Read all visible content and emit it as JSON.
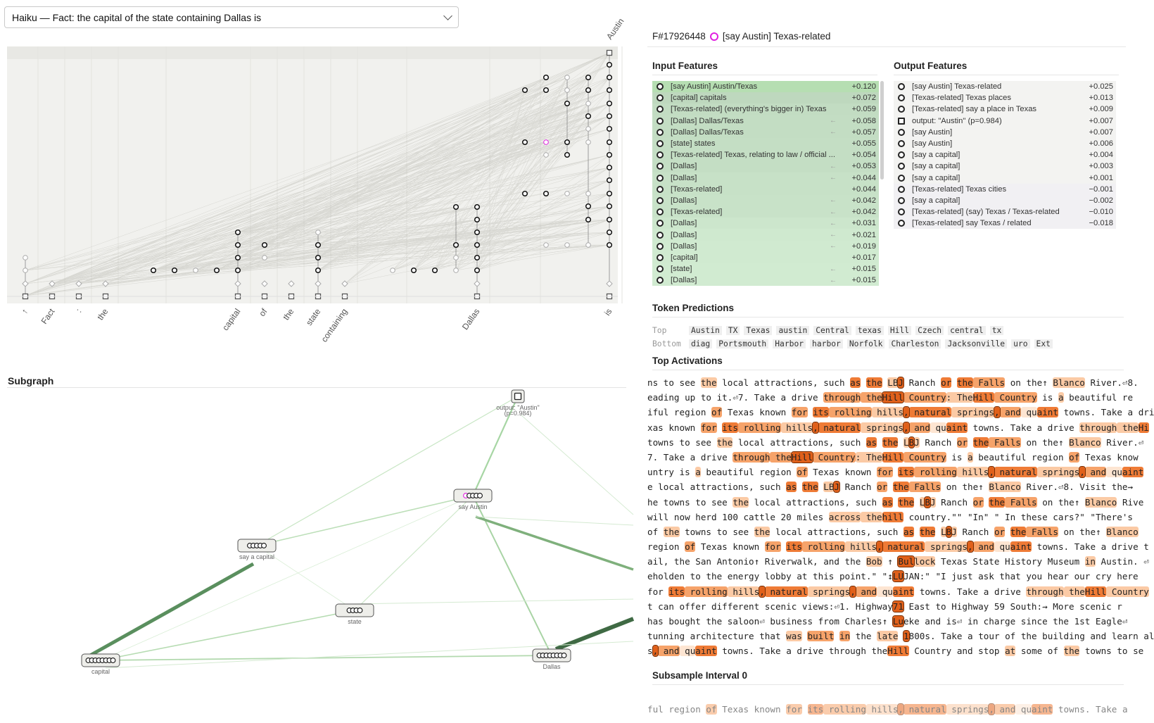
{
  "prompt_select": {
    "value": "Haiku — Fact: the capital of the state containing Dallas is"
  },
  "graph": {
    "tokens": [
      "↑",
      "Fact",
      ":",
      "the",
      "capital",
      "of",
      "the",
      "state",
      "containing",
      "Dallas",
      "is"
    ],
    "top_token": "Austin"
  },
  "subgraph": {
    "title": "Subgraph",
    "nodes": {
      "output": "output: \"Austin\"",
      "output_p": "(p=0.984)",
      "say_austin": "say Austin",
      "say_capital": "say a capital",
      "state": "state",
      "capital": "capital",
      "dallas": "Dallas"
    }
  },
  "feature": {
    "id": "F#17926448",
    "name": "[say Austin] Texas-related",
    "ring_color": "#e020e0"
  },
  "input_features": {
    "title": "Input Features",
    "items": [
      {
        "label": "[say Austin] Austin/Texas",
        "arrow": "",
        "value": "+0.120",
        "w": 1.0
      },
      {
        "label": "[capital] capitals",
        "arrow": "",
        "value": "+0.072",
        "w": 0.6
      },
      {
        "label": "[Texas-related] (everything's bigger in) Texas",
        "arrow": "",
        "value": "+0.059",
        "w": 0.49
      },
      {
        "label": "[Dallas] Dallas/Texas",
        "arrow": "←",
        "value": "+0.058",
        "w": 0.48
      },
      {
        "label": "[Dallas] Dallas/Texas",
        "arrow": "←",
        "value": "+0.057",
        "w": 0.47
      },
      {
        "label": "[state] states",
        "arrow": "",
        "value": "+0.055",
        "w": 0.46
      },
      {
        "label": "[Texas-related] Texas, relating to law / official ...",
        "arrow": "",
        "value": "+0.054",
        "w": 0.45
      },
      {
        "label": "[Dallas]",
        "arrow": "←",
        "value": "+0.053",
        "w": 0.44
      },
      {
        "label": "[Dallas]",
        "arrow": "←",
        "value": "+0.044",
        "w": 0.37
      },
      {
        "label": "[Texas-related]",
        "arrow": "",
        "value": "+0.044",
        "w": 0.37
      },
      {
        "label": "[Dallas]",
        "arrow": "←",
        "value": "+0.042",
        "w": 0.35
      },
      {
        "label": "[Texas-related]",
        "arrow": "←",
        "value": "+0.042",
        "w": 0.35
      },
      {
        "label": "[Dallas]",
        "arrow": "←",
        "value": "+0.031",
        "w": 0.26
      },
      {
        "label": "[Dallas]",
        "arrow": "←",
        "value": "+0.021",
        "w": 0.18
      },
      {
        "label": "[Dallas]",
        "arrow": "←",
        "value": "+0.019",
        "w": 0.16
      },
      {
        "label": "[capital]",
        "arrow": "",
        "value": "+0.017",
        "w": 0.14
      },
      {
        "label": "[state]",
        "arrow": "←",
        "value": "+0.015",
        "w": 0.13
      },
      {
        "label": "[Dallas]",
        "arrow": "←",
        "value": "+0.015",
        "w": 0.13
      }
    ]
  },
  "output_features": {
    "title": "Output Features",
    "items": [
      {
        "label": "[say Austin] Texas-related",
        "value": "+0.025",
        "sq": false
      },
      {
        "label": "[Texas-related] Texas places",
        "value": "+0.013",
        "sq": false
      },
      {
        "label": "[Texas-related] say a place in Texas",
        "value": "+0.009",
        "sq": false
      },
      {
        "label": "output: \"Austin\" (p=0.984)",
        "value": "+0.007",
        "sq": true
      },
      {
        "label": "[say Austin]",
        "value": "+0.007",
        "sq": false
      },
      {
        "label": "[say Austin]",
        "value": "+0.006",
        "sq": false
      },
      {
        "label": "[say a capital]",
        "value": "+0.004",
        "sq": false
      },
      {
        "label": "[say a capital]",
        "value": "+0.003",
        "sq": false
      },
      {
        "label": "[say a capital]",
        "value": "+0.001",
        "sq": false
      },
      {
        "label": "[Texas-related] Texas cities",
        "value": "−0.001",
        "sq": false
      },
      {
        "label": "[say a capital]",
        "value": "−0.002",
        "sq": false
      },
      {
        "label": "[Texas-related] (say) Texas / Texas-related",
        "value": "−0.010",
        "sq": false
      },
      {
        "label": "[Texas-related] say Texas / related",
        "value": "−0.018",
        "sq": false
      }
    ]
  },
  "token_predictions": {
    "title": "Token Predictions",
    "top_label": "Top",
    "bottom_label": "Bottom",
    "top": [
      "Austin",
      "TX",
      "Texas",
      "austin",
      "Central",
      "texas",
      "Hill",
      "Czech",
      "central",
      "tx"
    ],
    "bottom": [
      "diag",
      "Portsmouth",
      "Harbor",
      "harbor",
      "Norfolk",
      "Charleston",
      "Jacksonville",
      "uro",
      "Ext"
    ]
  },
  "top_activations": {
    "title": "Top Activations",
    "lines": [
      [
        [
          "ns to see ",
          0
        ],
        [
          "the",
          2
        ],
        [
          " local attractions, such ",
          0
        ],
        [
          "as",
          4
        ],
        [
          " ",
          0
        ],
        [
          "the",
          4
        ],
        [
          " ",
          0
        ],
        [
          "LB",
          2
        ],
        [
          "J",
          5
        ],
        [
          " Ranch ",
          0
        ],
        [
          "or",
          4
        ],
        [
          " ",
          0
        ],
        [
          "the",
          4
        ],
        [
          " Falls",
          3
        ],
        [
          " on the↑ ",
          0
        ],
        [
          "Blanco",
          2
        ],
        [
          " River.⏎8.",
          0
        ]
      ],
      [
        [
          "eading up to it.⏎7. Take a drive ",
          0
        ],
        [
          "through",
          3
        ],
        [
          " the",
          3
        ],
        [
          "Hill",
          5
        ],
        [
          " Country",
          3
        ],
        [
          ": The",
          2
        ],
        [
          "Hill",
          4
        ],
        [
          " Country",
          3
        ],
        [
          " is ",
          0
        ],
        [
          "a",
          2
        ],
        [
          " beautiful re",
          0
        ]
      ],
      [
        [
          "iful region ",
          0
        ],
        [
          "of",
          3
        ],
        [
          " Texas known ",
          0
        ],
        [
          "for",
          3
        ],
        [
          " ",
          0
        ],
        [
          "its",
          4
        ],
        [
          " rolling",
          3
        ],
        [
          " hills",
          2
        ],
        [
          ",",
          5
        ],
        [
          " natural",
          4
        ],
        [
          " springs",
          2
        ],
        [
          ",",
          5
        ],
        [
          " and",
          3
        ],
        [
          " qu",
          1
        ],
        [
          "aint",
          4
        ],
        [
          " towns. Take a dri",
          0
        ]
      ],
      [
        [
          "xas known ",
          0
        ],
        [
          "for",
          3
        ],
        [
          " ",
          0
        ],
        [
          "its",
          4
        ],
        [
          " rolling",
          3
        ],
        [
          " hills",
          2
        ],
        [
          ",",
          5
        ],
        [
          " natural",
          4
        ],
        [
          " springs",
          2
        ],
        [
          ",",
          5
        ],
        [
          " and",
          3
        ],
        [
          " qu",
          1
        ],
        [
          "aint",
          4
        ],
        [
          " towns. Take a drive ",
          0
        ],
        [
          "through",
          2
        ],
        [
          " the",
          2
        ],
        [
          "Hi",
          4
        ]
      ],
      [
        [
          "towns to see ",
          0
        ],
        [
          "the",
          2
        ],
        [
          " local attractions, such ",
          0
        ],
        [
          "as",
          4
        ],
        [
          " ",
          0
        ],
        [
          "the",
          4
        ],
        [
          " ",
          0
        ],
        [
          "L",
          2
        ],
        [
          "B",
          5
        ],
        [
          "J",
          2
        ],
        [
          " Ranch ",
          0
        ],
        [
          "or",
          3
        ],
        [
          " ",
          0
        ],
        [
          "the",
          4
        ],
        [
          " Falls",
          3
        ],
        [
          " on the↑ ",
          0
        ],
        [
          "Blanco",
          2
        ],
        [
          " River.⏎",
          0
        ]
      ],
      [
        [
          "7. Take a drive ",
          0
        ],
        [
          "through",
          3
        ],
        [
          " the",
          3
        ],
        [
          "Hill",
          5
        ],
        [
          " Country",
          3
        ],
        [
          ": The",
          2
        ],
        [
          "Hill",
          4
        ],
        [
          " Country",
          3
        ],
        [
          " is ",
          0
        ],
        [
          "a",
          2
        ],
        [
          " beautiful region ",
          0
        ],
        [
          "of",
          3
        ],
        [
          " Texas know",
          0
        ]
      ],
      [
        [
          "untry is ",
          0
        ],
        [
          "a",
          2
        ],
        [
          " beautiful region ",
          0
        ],
        [
          "of",
          3
        ],
        [
          " Texas known ",
          0
        ],
        [
          "for",
          3
        ],
        [
          " ",
          0
        ],
        [
          "its",
          4
        ],
        [
          " rolling",
          3
        ],
        [
          " hills",
          2
        ],
        [
          ",",
          5
        ],
        [
          " natural",
          4
        ],
        [
          " springs",
          2
        ],
        [
          ",",
          5
        ],
        [
          " and",
          3
        ],
        [
          " qu",
          1
        ],
        [
          "aint",
          4
        ]
      ],
      [
        [
          "e local attractions, such ",
          0
        ],
        [
          "as",
          4
        ],
        [
          " ",
          0
        ],
        [
          "the",
          4
        ],
        [
          " ",
          0
        ],
        [
          "LB",
          2
        ],
        [
          "J",
          5
        ],
        [
          " Ranch ",
          0
        ],
        [
          "or",
          3
        ],
        [
          " ",
          0
        ],
        [
          "the",
          4
        ],
        [
          " Falls",
          3
        ],
        [
          " on the↑ ",
          0
        ],
        [
          "Blanco",
          2
        ],
        [
          " River.⏎8. Visit the⇝",
          0
        ]
      ],
      [
        [
          "he towns to see ",
          0
        ],
        [
          "the",
          2
        ],
        [
          " local attractions, such ",
          0
        ],
        [
          "as",
          4
        ],
        [
          " ",
          0
        ],
        [
          "the",
          4
        ],
        [
          " ",
          0
        ],
        [
          "L",
          2
        ],
        [
          "B",
          5
        ],
        [
          "J",
          2
        ],
        [
          " Ranch ",
          0
        ],
        [
          "or",
          3
        ],
        [
          " ",
          0
        ],
        [
          "the",
          4
        ],
        [
          " Falls",
          3
        ],
        [
          " on the↑ ",
          0
        ],
        [
          "Blanco",
          2
        ],
        [
          " Rive",
          0
        ]
      ],
      [
        [
          "will now herd 100 cattle 20 miles ",
          0
        ],
        [
          "across",
          2
        ],
        [
          " the",
          2
        ],
        [
          "hill",
          4
        ],
        [
          " country.\"\" \"In\" \" In these cars?\" \"There's",
          0
        ]
      ],
      [
        [
          "of ",
          0
        ],
        [
          "the",
          2
        ],
        [
          " towns to see ",
          0
        ],
        [
          "the",
          2
        ],
        [
          " local attractions, such ",
          0
        ],
        [
          "as",
          4
        ],
        [
          " ",
          0
        ],
        [
          "the",
          4
        ],
        [
          " ",
          0
        ],
        [
          "L",
          2
        ],
        [
          "B",
          5
        ],
        [
          "J",
          2
        ],
        [
          " Ranch ",
          0
        ],
        [
          "or",
          3
        ],
        [
          " ",
          0
        ],
        [
          "the",
          4
        ],
        [
          " Falls",
          3
        ],
        [
          " on the↑ ",
          0
        ],
        [
          "Blanco",
          2
        ]
      ],
      [
        [
          "region ",
          0
        ],
        [
          "of",
          3
        ],
        [
          " Texas known ",
          0
        ],
        [
          "for",
          3
        ],
        [
          " ",
          0
        ],
        [
          "its",
          4
        ],
        [
          " rolling",
          3
        ],
        [
          " hills",
          2
        ],
        [
          ",",
          5
        ],
        [
          " natural",
          4
        ],
        [
          " springs",
          2
        ],
        [
          ",",
          5
        ],
        [
          " and",
          3
        ],
        [
          " qu",
          1
        ],
        [
          "aint",
          4
        ],
        [
          " towns. Take a drive t",
          0
        ]
      ],
      [
        [
          "ail, the San Antonio↑ Riverwalk, and the ",
          0
        ],
        [
          "Bob",
          2
        ],
        [
          " ↑ ",
          0
        ],
        [
          "Bul",
          5
        ],
        [
          "lock",
          2
        ],
        [
          " Texas State History Museum ",
          0
        ],
        [
          "in",
          2
        ],
        [
          " Austin. ⏎",
          0
        ]
      ],
      [
        [
          "eholden to the energy lobby at this point.\" \"↕",
          0
        ],
        [
          "LU",
          5
        ],
        [
          "JAN:\" \"I just ask that you hear our cry here",
          0
        ]
      ],
      [
        [
          "for ",
          0
        ],
        [
          "its",
          4
        ],
        [
          " rolling",
          3
        ],
        [
          " hills",
          2
        ],
        [
          ",",
          5
        ],
        [
          " natural",
          4
        ],
        [
          " springs",
          2
        ],
        [
          ",",
          5
        ],
        [
          " and",
          3
        ],
        [
          " qu",
          1
        ],
        [
          "aint",
          4
        ],
        [
          " towns. Take a drive ",
          0
        ],
        [
          "through",
          2
        ],
        [
          " the",
          2
        ],
        [
          "Hill",
          4
        ],
        [
          " Country",
          2
        ]
      ],
      [
        [
          "t can offer different scenic views:⏎1. Highway",
          0
        ],
        [
          "71",
          5
        ],
        [
          " East to Highway 59 South:⇝ More scenic r",
          0
        ]
      ],
      [
        [
          " has bought the saloon⏎ business from Charles↑ ",
          0
        ],
        [
          "Lu",
          5
        ],
        [
          "eke and is⏎ in charge since the 1st Eagle⏎",
          0
        ]
      ],
      [
        [
          "tunning architecture that ",
          0
        ],
        [
          "was",
          2
        ],
        [
          " ",
          0
        ],
        [
          "built",
          3
        ],
        [
          " ",
          0
        ],
        [
          "in",
          3
        ],
        [
          " the ",
          0
        ],
        [
          "late",
          2
        ],
        [
          " ",
          0
        ],
        [
          "1",
          5
        ],
        [
          "800s. Take a tour of the building and learn al",
          0
        ]
      ],
      [
        [
          "s",
          0
        ],
        [
          ",",
          5
        ],
        [
          " and",
          3
        ],
        [
          " qu",
          1
        ],
        [
          "aint",
          4
        ],
        [
          " towns. Take a drive through the",
          0
        ],
        [
          "Hill",
          4
        ],
        [
          " Country and stop ",
          0
        ],
        [
          "at",
          2
        ],
        [
          " some of ",
          0
        ],
        [
          "the",
          2
        ],
        [
          " towns to se",
          0
        ]
      ]
    ]
  },
  "subsample": {
    "title": "Subsample Interval 0",
    "line": [
      [
        "ful region ",
        0
      ],
      [
        "of",
        3
      ],
      [
        " Texas known ",
        0
      ],
      [
        "for",
        3
      ],
      [
        " ",
        0
      ],
      [
        "its",
        4
      ],
      [
        " rolling",
        3
      ],
      [
        " hills",
        2
      ],
      [
        ",",
        5
      ],
      [
        " natural",
        4
      ],
      [
        " springs",
        2
      ],
      [
        ",",
        5
      ],
      [
        " and",
        3
      ],
      [
        " qu",
        1
      ],
      [
        "aint",
        4
      ],
      [
        " towns. Take a",
        0
      ]
    ]
  },
  "colors": {
    "accent_green": "#5a8f5e",
    "highlight_magenta": "#e020e0"
  }
}
